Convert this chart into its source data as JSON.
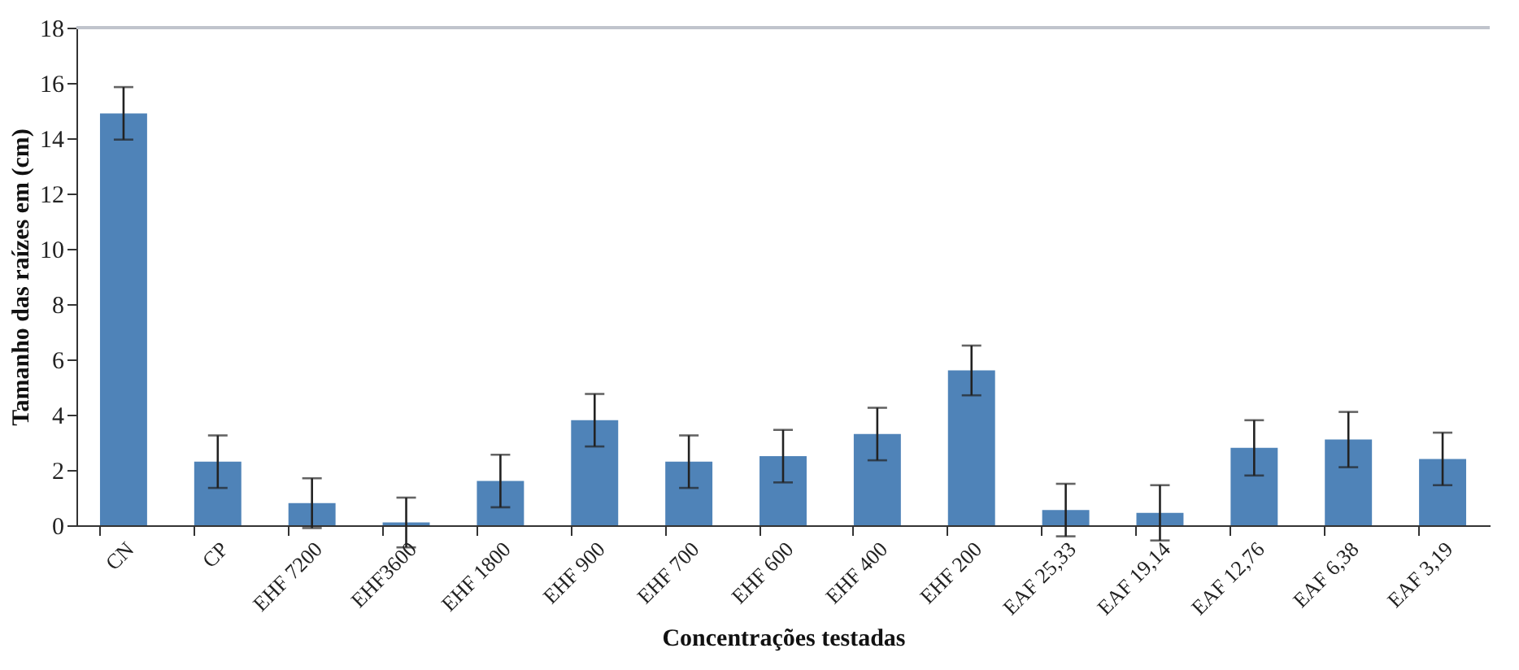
{
  "chart_data": {
    "type": "bar",
    "xlabel": "Concentrações testadas",
    "ylabel": "Tamanho das raízes em (cm)",
    "categories": [
      "CN",
      "CP",
      "EHF 7200",
      "EHF3600",
      "EHF 1800",
      "EHF 900",
      "EHF 700",
      "EHF 600",
      "EHF 400",
      "EHF 200",
      "EAF 25,33",
      "EAF 19,14",
      "EAF 12,76",
      "EAF 6,38",
      "EAF 3,19"
    ],
    "values": [
      14.9,
      2.3,
      0.8,
      0.1,
      1.6,
      3.8,
      2.3,
      2.5,
      3.3,
      5.6,
      0.55,
      0.45,
      2.8,
      3.1,
      2.4
    ],
    "errors": [
      0.95,
      0.95,
      0.9,
      0.9,
      0.95,
      0.95,
      0.95,
      0.95,
      0.95,
      0.9,
      0.95,
      1.0,
      1.0,
      1.0,
      0.95
    ],
    "color": "#4f83b8",
    "ylim": [
      0,
      18
    ],
    "yticks": [
      0,
      2,
      4,
      6,
      8,
      10,
      12,
      14,
      16,
      18
    ],
    "grid": false
  }
}
